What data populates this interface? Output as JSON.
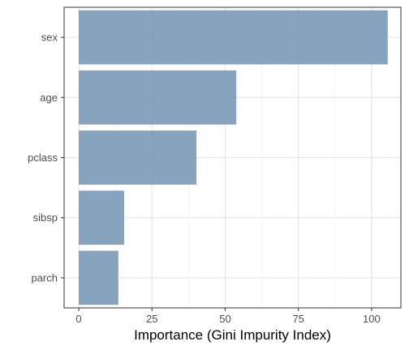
{
  "chart_data": {
    "type": "bar",
    "orientation": "horizontal",
    "categories": [
      "sex",
      "age",
      "pclass",
      "sibsp",
      "parch"
    ],
    "values": [
      105.5,
      53.8,
      40.2,
      15.5,
      13.5
    ],
    "xlabel": "Importance (Gini Impurity Index)",
    "ylabel": "",
    "xlim": [
      -5,
      110
    ],
    "x_ticks": [
      0,
      25,
      50,
      75,
      100
    ],
    "x_tick_labels": [
      "0",
      "25",
      "50",
      "75",
      "100"
    ],
    "grid": true,
    "bar_color": "#7393B3",
    "bar_opacity": 0.85,
    "background": "#ffffff",
    "grid_color": "#e6e6e6",
    "panel_border_color": "#333333"
  }
}
